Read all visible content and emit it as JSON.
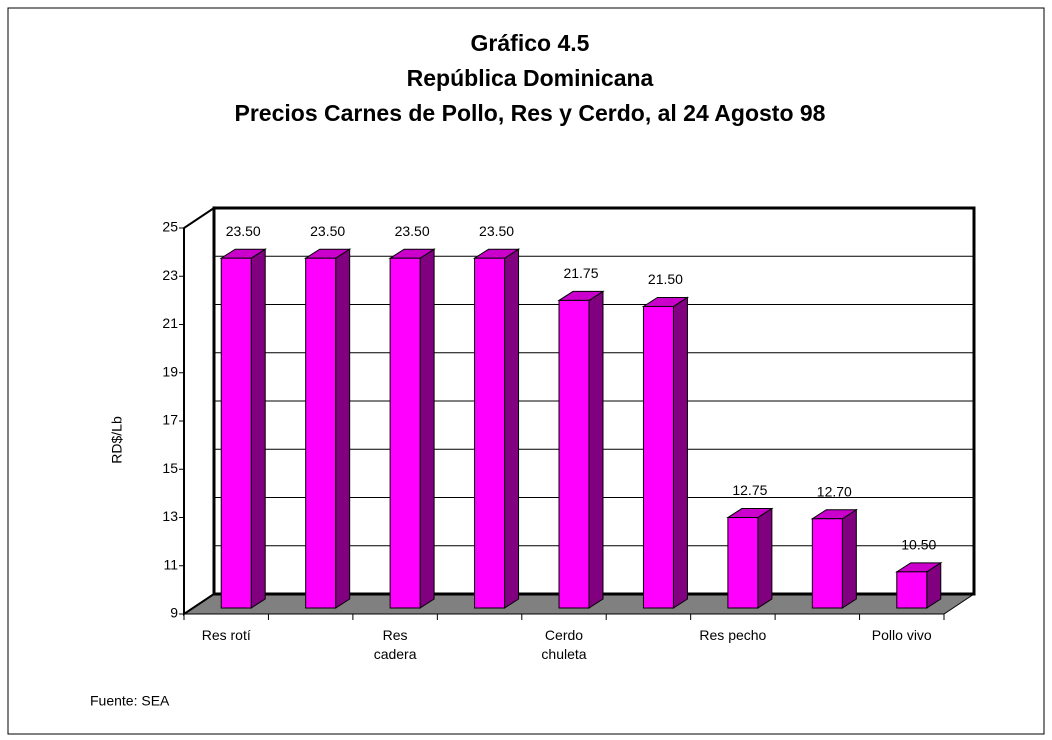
{
  "chart_data": {
    "type": "bar3d",
    "title": [
      "Gráfico 4.5",
      "República Dominicana",
      "Precios Carnes de Pollo, Res y Cerdo, al 24 Agosto 98"
    ],
    "y_label": "RD$/Lb",
    "source": "Fuente: SEA",
    "categories": [
      "Res rotí",
      null,
      "Res\ncadera",
      null,
      "Cerdo\nchuleta",
      null,
      "Res pecho",
      null,
      "Pollo vivo"
    ],
    "values": [
      23.5,
      23.5,
      23.5,
      23.5,
      21.75,
      21.5,
      12.75,
      12.7,
      10.5
    ],
    "value_labels": [
      "23.50",
      "23.50",
      "23.50",
      "23.50",
      "21.75",
      "21.50",
      "12.75",
      "12.70",
      "10.50"
    ],
    "color": "#ff00ff",
    "ylim": [
      9,
      25
    ],
    "yticks": [
      9,
      11,
      13,
      15,
      17,
      19,
      21,
      23,
      25
    ],
    "grid": true
  }
}
